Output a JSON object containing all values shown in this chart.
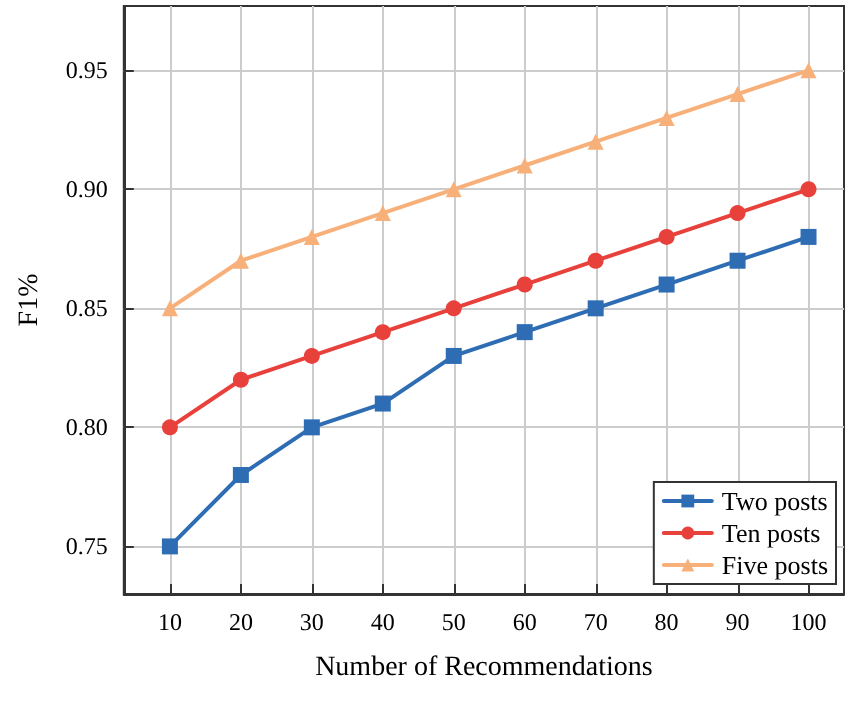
{
  "chart_data": {
    "type": "line",
    "xlabel": "Number of Recommendations",
    "ylabel": "F1%",
    "x": [
      10,
      20,
      30,
      40,
      50,
      60,
      70,
      80,
      90,
      100
    ],
    "series": [
      {
        "name": "Two posts",
        "color": "#2e6db4",
        "marker": "square",
        "values": [
          0.75,
          0.78,
          0.8,
          0.81,
          0.83,
          0.84,
          0.85,
          0.86,
          0.87,
          0.88
        ]
      },
      {
        "name": "Ten posts",
        "color": "#e8413c",
        "marker": "circle",
        "values": [
          0.8,
          0.82,
          0.83,
          0.84,
          0.85,
          0.86,
          0.87,
          0.88,
          0.89,
          0.9
        ]
      },
      {
        "name": "Five posts",
        "color": "#f8b07a",
        "marker": "triangle",
        "values": [
          0.85,
          0.87,
          0.88,
          0.89,
          0.9,
          0.91,
          0.92,
          0.93,
          0.94,
          0.95
        ]
      }
    ],
    "xlim": [
      3.5,
      105
    ],
    "xticks": [
      10,
      20,
      30,
      40,
      50,
      60,
      70,
      80,
      90,
      100
    ],
    "ylim": [
      0.73,
      0.977
    ],
    "yticks": [
      0.75,
      {
        "value": 0.8,
        "label": "0.80"
      },
      0.85,
      {
        "value": 0.9,
        "label": "0.90"
      },
      0.95
    ],
    "grid": true,
    "legend": "bottom right"
  }
}
